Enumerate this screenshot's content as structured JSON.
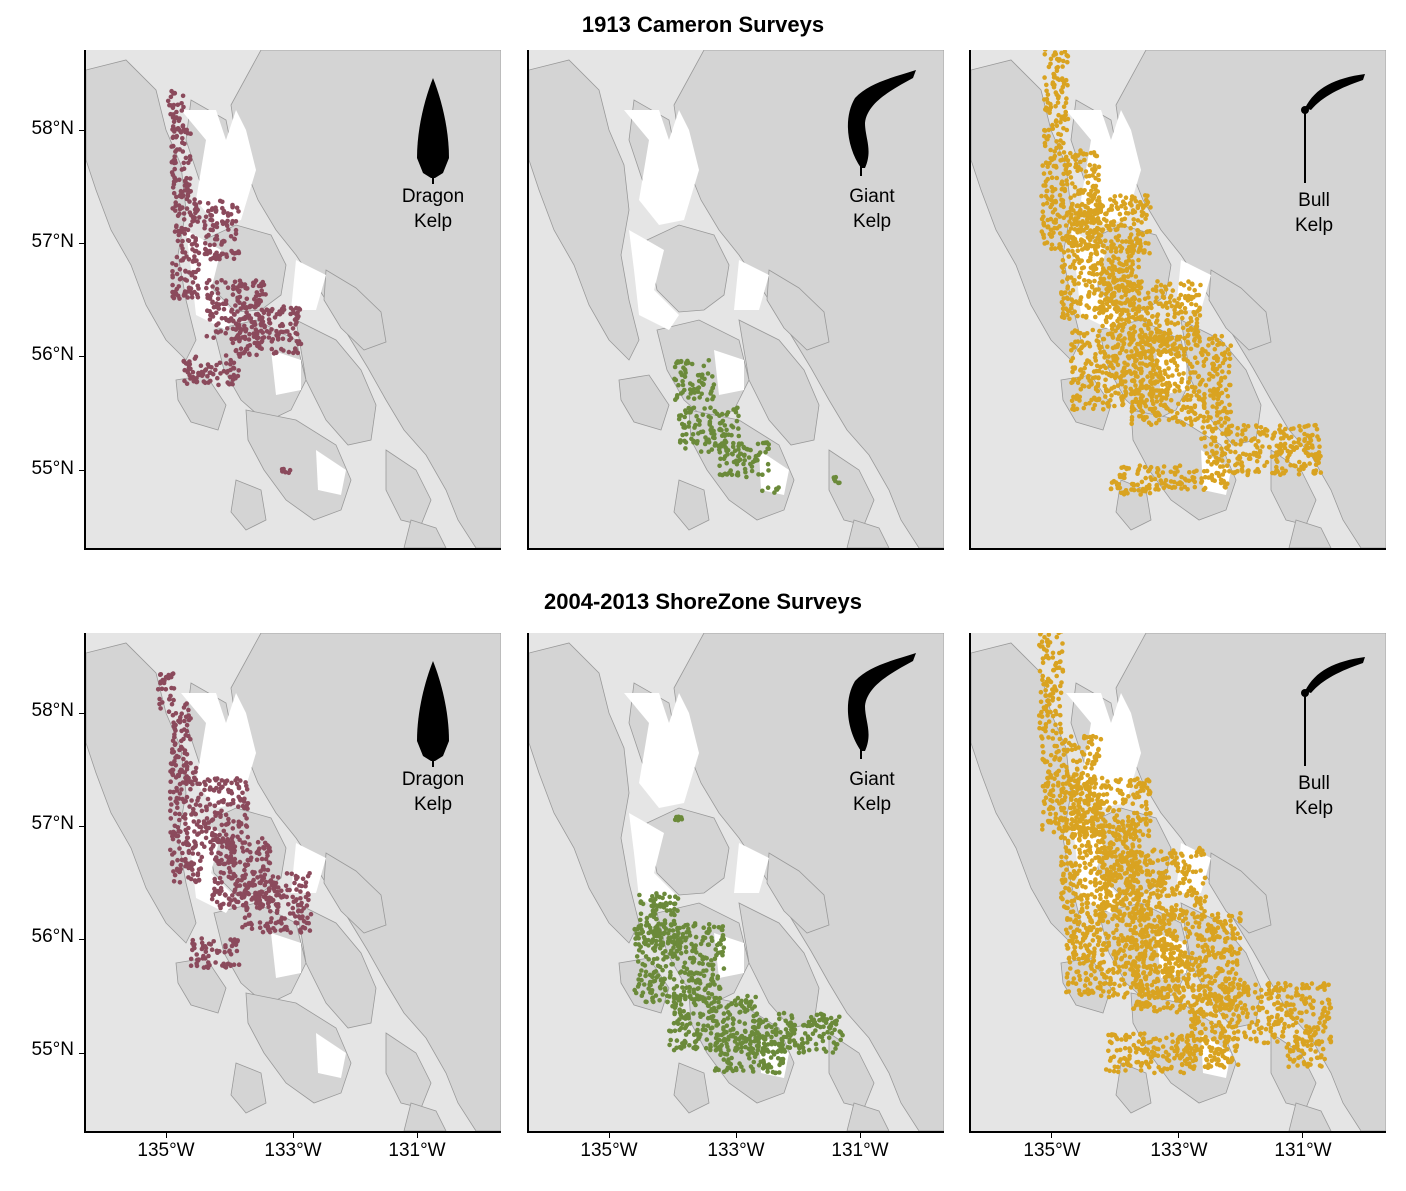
{
  "rows": [
    {
      "title": "1913 Cameron Surveys"
    },
    {
      "title": "2004-2013 ShoreZone Surveys"
    }
  ],
  "y_axis": {
    "ticks": [
      "58°N",
      "57°N",
      "56°N",
      "55°N"
    ]
  },
  "x_axis": {
    "ticks": [
      "135°W",
      "133°W",
      "131°W"
    ]
  },
  "species": [
    {
      "name_line1": "Dragon",
      "name_line2": "Kelp",
      "color": "#8b4a5c",
      "icon": "dragon-kelp-icon"
    },
    {
      "name_line1": "Giant",
      "name_line2": "Kelp",
      "color": "#6b8a3a",
      "icon": "giant-kelp-icon"
    },
    {
      "name_line1": "Bull",
      "name_line2": "Kelp",
      "color": "#d9a321",
      "icon": "bull-kelp-icon"
    }
  ],
  "colors": {
    "land": "#d4d4d4",
    "land_outline": "#9a9a9a",
    "water": "#ffffff",
    "background": "#e5e5e5"
  }
}
